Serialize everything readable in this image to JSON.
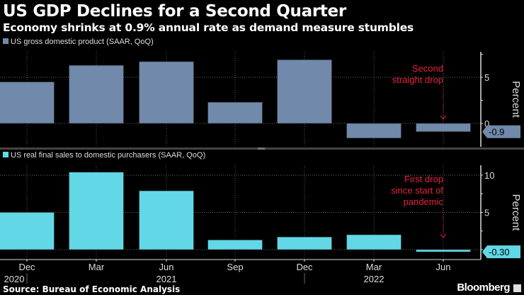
{
  "title": "US GDP Declines for a Second Quarter",
  "subtitle": "Economy shrinks at 0.9% annual rate as demand measure stumbles",
  "source": "Source: Bureau of Economic Analysis",
  "brand": "Bloomberg",
  "chart_data": [
    {
      "type": "bar",
      "legend": "US gross domestic product (SAAR, QoQ)",
      "color": "#7189aa",
      "categories": [
        "Dec 2020",
        "Mar 2021",
        "Jun 2021",
        "Sep 2021",
        "Dec 2021",
        "Mar 2022",
        "Jun 2022"
      ],
      "values": [
        4.5,
        6.3,
        6.7,
        2.3,
        6.9,
        -1.6,
        -0.9
      ],
      "ylabel": "Percent",
      "yticks": [
        "0",
        "5"
      ],
      "ylim": [
        -2.6,
        7.8
      ],
      "last_value_label": "-0.9",
      "annotation": [
        "Second",
        "straight drop"
      ],
      "annotation_color": "#e8213f"
    },
    {
      "type": "bar",
      "legend": "US real final sales to domestic purchasers (SAAR, QoQ)",
      "color": "#62d8e6",
      "categories": [
        "Dec 2020",
        "Mar 2021",
        "Jun 2021",
        "Sep 2021",
        "Dec 2021",
        "Mar 2022",
        "Jun 2022"
      ],
      "values": [
        5.0,
        10.4,
        7.9,
        1.3,
        1.7,
        2.0,
        -0.3
      ],
      "ylabel": "Percent",
      "yticks": [
        "5",
        "10"
      ],
      "ylim": [
        -1.5,
        11
      ],
      "last_value_label": "-0.30",
      "annotation": [
        "First drop",
        "since start of",
        "pandemic"
      ],
      "annotation_color": "#e8213f"
    }
  ],
  "x_axis": {
    "month_labels": [
      "Dec",
      "Mar",
      "Jun",
      "Sep",
      "Dec",
      "Mar",
      "Jun"
    ],
    "year_labels": [
      "2020",
      "2021",
      "2022"
    ]
  }
}
